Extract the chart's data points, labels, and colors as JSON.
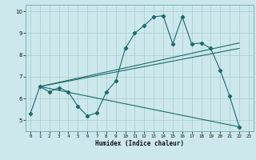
{
  "title": "",
  "xlabel": "Humidex (Indice chaleur)",
  "background_color": "#cce8ec",
  "grid_color": "#aacccc",
  "line_color": "#1a6b6e",
  "xlim": [
    -0.5,
    23.5
  ],
  "ylim": [
    4.5,
    10.3
  ],
  "xticks": [
    0,
    1,
    2,
    3,
    4,
    5,
    6,
    7,
    8,
    9,
    10,
    11,
    12,
    13,
    14,
    15,
    16,
    17,
    18,
    19,
    20,
    21,
    22,
    23
  ],
  "yticks": [
    5,
    6,
    7,
    8,
    9,
    10
  ],
  "series1_x": [
    0,
    1,
    2,
    3,
    4,
    5,
    6,
    7,
    8,
    9,
    10,
    11,
    12,
    13,
    14,
    15,
    16,
    17,
    18,
    19,
    20,
    21,
    22
  ],
  "series1_y": [
    5.3,
    6.55,
    6.3,
    6.5,
    6.3,
    5.65,
    5.2,
    5.35,
    6.3,
    6.8,
    8.3,
    9.0,
    9.35,
    9.75,
    9.8,
    8.5,
    9.75,
    8.5,
    8.55,
    8.3,
    7.3,
    6.1,
    4.7
  ],
  "series2_x": [
    1,
    22
  ],
  "series2_y": [
    6.55,
    8.55
  ],
  "series3_x": [
    1,
    22
  ],
  "series3_y": [
    6.55,
    8.3
  ],
  "series4_x": [
    1,
    22
  ],
  "series4_y": [
    6.55,
    4.7
  ]
}
